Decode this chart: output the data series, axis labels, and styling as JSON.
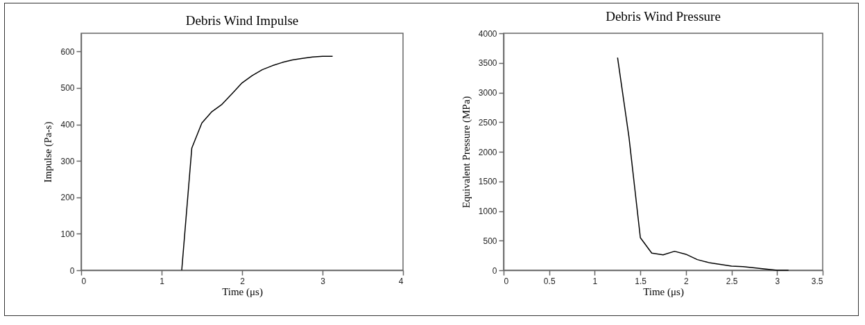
{
  "chart_data": [
    {
      "type": "line",
      "title": "Debris Wind Impulse",
      "xlabel": "Time (μs)",
      "ylabel": "Impulse (Pa-s)",
      "x": [
        1.25,
        1.375,
        1.5,
        1.625,
        1.75,
        1.875,
        2.0,
        2.125,
        2.25,
        2.375,
        2.5,
        2.625,
        2.75,
        2.875,
        3.0,
        3.125
      ],
      "series": [
        {
          "color": "#000000",
          "values": [
            0,
            335,
            404,
            435,
            455,
            484,
            514,
            534,
            550,
            561,
            570,
            577,
            581,
            585,
            587,
            587
          ]
        }
      ],
      "xlim": [
        0,
        4
      ],
      "ylim": [
        0,
        650
      ],
      "xticks": [
        0,
        1,
        2,
        3,
        4
      ],
      "yticks": [
        0,
        100,
        200,
        300,
        400,
        500,
        600
      ]
    },
    {
      "type": "line",
      "title": "Debris Wind Pressure",
      "xlabel": "Time (μs)",
      "ylabel": "Equivalent Pressure (MPa)",
      "x": [
        1.25,
        1.375,
        1.5,
        1.625,
        1.75,
        1.875,
        2.0,
        2.125,
        2.25,
        2.375,
        2.5,
        2.625,
        2.75,
        2.875,
        3.0,
        3.125
      ],
      "series": [
        {
          "color": "#000000",
          "values": [
            3590,
            2250,
            550,
            290,
            260,
            320,
            270,
            180,
            130,
            100,
            70,
            60,
            40,
            20,
            0,
            0
          ]
        }
      ],
      "xlim": [
        0,
        3.5
      ],
      "ylim": [
        0,
        4000
      ],
      "xticks": [
        0,
        0.5,
        1,
        1.5,
        2,
        2.5,
        3,
        3.5
      ],
      "yticks": [
        0,
        500,
        1000,
        1500,
        2000,
        2500,
        3000,
        3500,
        4000
      ]
    }
  ]
}
